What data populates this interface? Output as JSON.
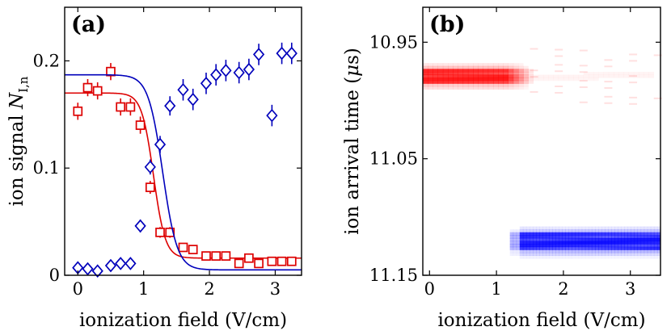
{
  "chart_data": [
    {
      "type": "scatter",
      "panel_label": "(a)",
      "xlabel": "ionization field (V/cm)",
      "ylabel_main": "ion signal ",
      "ylabel_symbol": "N",
      "ylabel_subscript": "I,n",
      "xlim": [
        -0.2,
        3.4
      ],
      "ylim": [
        0,
        0.25
      ],
      "xticks": [
        "0",
        "1",
        "2",
        "3"
      ],
      "xtick_values": [
        0,
        1,
        2,
        3
      ],
      "yticks": [
        "0",
        "0.1",
        "0.2"
      ],
      "ytick_values": [
        0,
        0.1,
        0.2
      ],
      "series": [
        {
          "name": "red squares",
          "color": "#dd0000",
          "marker": "square",
          "x": [
            0.0,
            0.15,
            0.3,
            0.5,
            0.65,
            0.8,
            0.95,
            1.1,
            1.25,
            1.4,
            1.6,
            1.75,
            1.95,
            2.1,
            2.25,
            2.45,
            2.6,
            2.75,
            2.95,
            3.1,
            3.25
          ],
          "y": [
            0.153,
            0.175,
            0.172,
            0.19,
            0.157,
            0.157,
            0.14,
            0.082,
            0.04,
            0.04,
            0.026,
            0.024,
            0.018,
            0.018,
            0.018,
            0.011,
            0.016,
            0.011,
            0.013,
            0.013,
            0.013
          ],
          "err": [
            0.008,
            0.008,
            0.008,
            0.008,
            0.008,
            0.008,
            0.008,
            0.006,
            0.005,
            0.005,
            0.004,
            0.004,
            0.004,
            0.004,
            0.004,
            0.004,
            0.004,
            0.004,
            0.004,
            0.004,
            0.004
          ],
          "fit": {
            "type": "sigmoid",
            "high": 0.17,
            "low": 0.016,
            "center": 1.15,
            "width": 0.09
          }
        },
        {
          "name": "blue diamonds",
          "color": "#0000bb",
          "marker": "diamond",
          "x": [
            0.0,
            0.15,
            0.3,
            0.5,
            0.65,
            0.8,
            0.95,
            1.1,
            1.25,
            1.4,
            1.6,
            1.75,
            1.95,
            2.1,
            2.25,
            2.45,
            2.6,
            2.75,
            2.95,
            3.1,
            3.25
          ],
          "y": [
            0.007,
            0.006,
            0.004,
            0.009,
            0.011,
            0.011,
            0.046,
            0.101,
            0.122,
            0.158,
            0.173,
            0.164,
            0.179,
            0.187,
            0.191,
            0.189,
            0.192,
            0.206,
            0.149,
            0.207,
            0.207
          ],
          "err": [
            0.004,
            0.004,
            0.004,
            0.004,
            0.004,
            0.004,
            0.006,
            0.007,
            0.008,
            0.009,
            0.01,
            0.01,
            0.01,
            0.01,
            0.01,
            0.01,
            0.01,
            0.01,
            0.01,
            0.01,
            0.01
          ],
          "fit": {
            "type": "sigmoid",
            "high": 0.187,
            "low": 0.005,
            "center": 1.29,
            "width": 0.11
          }
        }
      ]
    },
    {
      "type": "heatmap",
      "panel_label": "(b)",
      "xlabel": "ionization field (V/cm)",
      "ylabel_main": "ion arrival time (",
      "ylabel_symbol": "μ",
      "ylabel_unit": "s)",
      "xlim": [
        -0.1,
        3.45
      ],
      "ylim": [
        10.92,
        11.15
      ],
      "y_reversed": true,
      "xticks": [
        "0",
        "1",
        "2",
        "3"
      ],
      "xtick_values": [
        0,
        1,
        2,
        3
      ],
      "yticks": [
        "10.95",
        "11.05",
        "11.15"
      ],
      "ytick_values": [
        10.95,
        11.05,
        11.15
      ],
      "bands": [
        {
          "name": "red band",
          "color": "#ff0000",
          "x_start": -0.1,
          "x_end": 3.35,
          "y_center": 10.978,
          "y_halfwidth": 0.007,
          "intensity_fade_start": 1.1,
          "intensity_fade_end": 1.5
        },
        {
          "name": "blue band",
          "color": "#0000ff",
          "x_start": 1.2,
          "x_end": 3.45,
          "y_center": 11.12,
          "y_halfwidth": 0.008,
          "intensity_fade_start": 1.5,
          "intensity_fade_end": 1.3
        }
      ]
    }
  ]
}
